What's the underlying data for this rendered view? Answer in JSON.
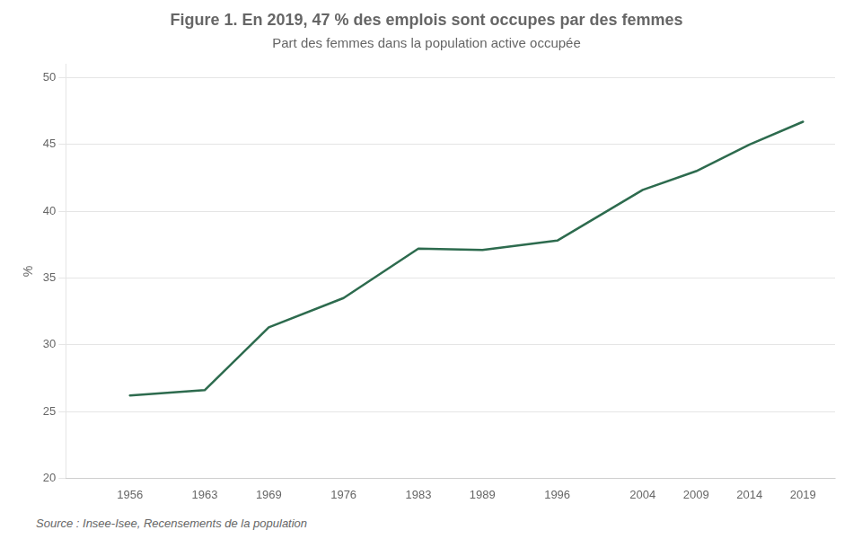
{
  "chart_data": {
    "type": "line",
    "title": "Figure 1. En 2019, 47 % des emplois sont occupes par des femmes",
    "subtitle": "Part des femmes dans la population active occupée",
    "source": "Source : Insee-Isee, Recensements de la population",
    "ylabel": "%",
    "x": [
      1956,
      1963,
      1969,
      1976,
      1983,
      1989,
      1996,
      2004,
      2009,
      2014,
      2019
    ],
    "values": [
      26.2,
      26.6,
      31.3,
      33.5,
      37.2,
      37.1,
      37.8,
      41.6,
      43.0,
      45.0,
      46.7
    ],
    "color": "#2d6b4e",
    "xlim": [
      1950,
      2022
    ],
    "xticks": [
      1956,
      1963,
      1969,
      1976,
      1983,
      1989,
      1996,
      2004,
      2009,
      2014,
      2019
    ],
    "ylim": [
      20,
      51
    ],
    "yticks": [
      20,
      25,
      30,
      35,
      40,
      45,
      50
    ],
    "grid": "y"
  }
}
